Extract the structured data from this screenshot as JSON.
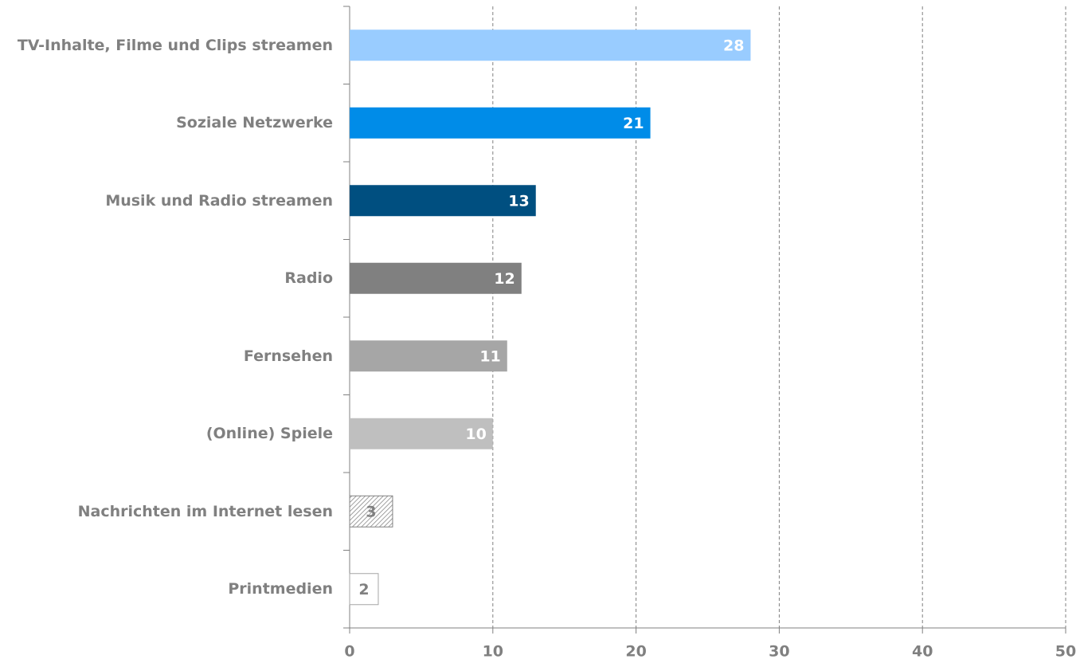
{
  "chart_data": {
    "type": "barh",
    "categories": [
      "TV-Inhalte, Filme und Clips streamen",
      "Soziale Netzwerke",
      "Musik und Radio streamen",
      "Radio",
      "Fernsehen",
      "(Online) Spiele",
      "Nachrichten im Internet lesen",
      "Printmedien"
    ],
    "values": [
      28,
      21,
      13,
      12,
      11,
      10,
      3,
      2
    ],
    "colors": [
      "#99ccff",
      "#008ce8",
      "#004f80",
      "#808080",
      "#a6a6a6",
      "#bfbfbf",
      "#808080",
      "#ffffff"
    ],
    "bar_styles": [
      "solid",
      "solid",
      "solid",
      "solid",
      "solid",
      "solid",
      "hatch",
      "outline"
    ],
    "label_colors": [
      "#ffffff",
      "#ffffff",
      "#ffffff",
      "#ffffff",
      "#ffffff",
      "#ffffff",
      "#808080",
      "#808080"
    ],
    "xlim": [
      0,
      50
    ],
    "xticks": [
      0,
      10,
      20,
      30,
      40,
      50
    ],
    "grid": true
  }
}
